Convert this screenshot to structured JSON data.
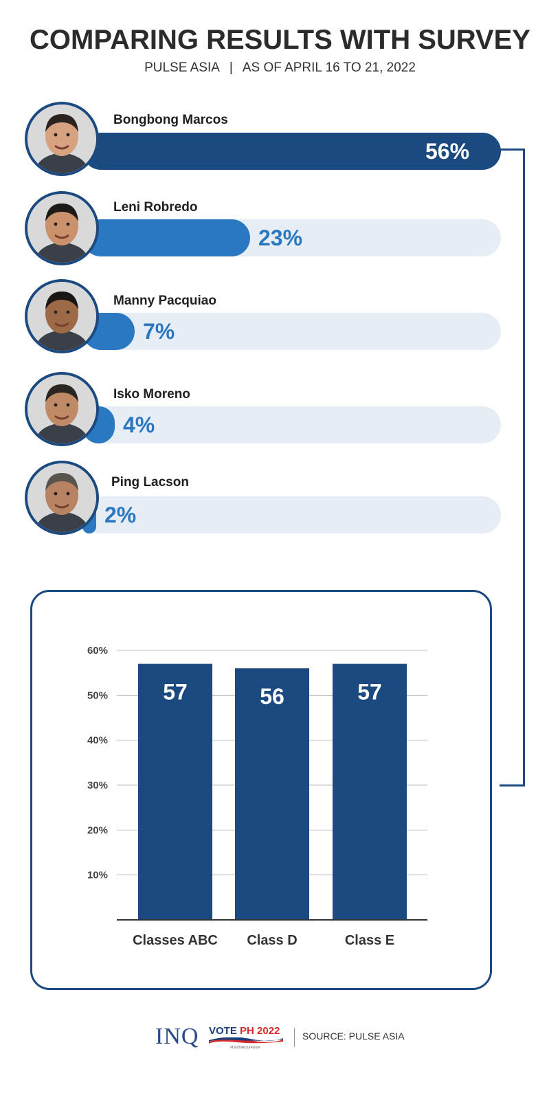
{
  "header": {
    "title": "COMPARING RESULTS WITH SURVEY",
    "subtitle_left": "PULSE ASIA",
    "subtitle_sep": "|",
    "subtitle_right": "AS OF APRIL 16 TO 21, 2022"
  },
  "candidates": [
    {
      "name": "Bongbong Marcos",
      "value": 56,
      "label": "56%"
    },
    {
      "name": "Leni Robredo",
      "value": 23,
      "label": "23%"
    },
    {
      "name": "Manny Pacquiao",
      "value": 7,
      "label": "7%"
    },
    {
      "name": "Isko Moreno",
      "value": 4,
      "label": "4%"
    },
    {
      "name": "Ping Lacson",
      "value": 2,
      "label": "2%"
    }
  ],
  "colors": {
    "dark_blue": "#1b4a80",
    "mid_blue": "#2b78c2",
    "track": "#e6edf5",
    "bar": "#1b4a80"
  },
  "chart_data": [
    {
      "type": "bar",
      "orientation": "horizontal",
      "categories": [
        "Bongbong Marcos",
        "Leni Robredo",
        "Manny Pacquiao",
        "Isko Moreno",
        "Ping Lacson"
      ],
      "values": [
        56,
        23,
        7,
        4,
        2
      ],
      "data_labels": [
        "56%",
        "23%",
        "7%",
        "4%",
        "2%"
      ],
      "xlim": [
        0,
        100
      ]
    },
    {
      "type": "bar",
      "categories": [
        "Classes ABC",
        "Class D",
        "Class E"
      ],
      "values": [
        57,
        56,
        57
      ],
      "data_labels": [
        "57",
        "56",
        "57"
      ],
      "y_ticks": [
        "10%",
        "20%",
        "30%",
        "40%",
        "50%",
        "60%"
      ],
      "ylim": [
        0,
        60
      ],
      "grid": true
    }
  ],
  "footer": {
    "brand": "INQ",
    "vote_text": "VOTE",
    "vote_highlight": "PH 2022",
    "tagline": "#OurVoteOurFuture",
    "source": "SOURCE: PULSE ASIA"
  }
}
